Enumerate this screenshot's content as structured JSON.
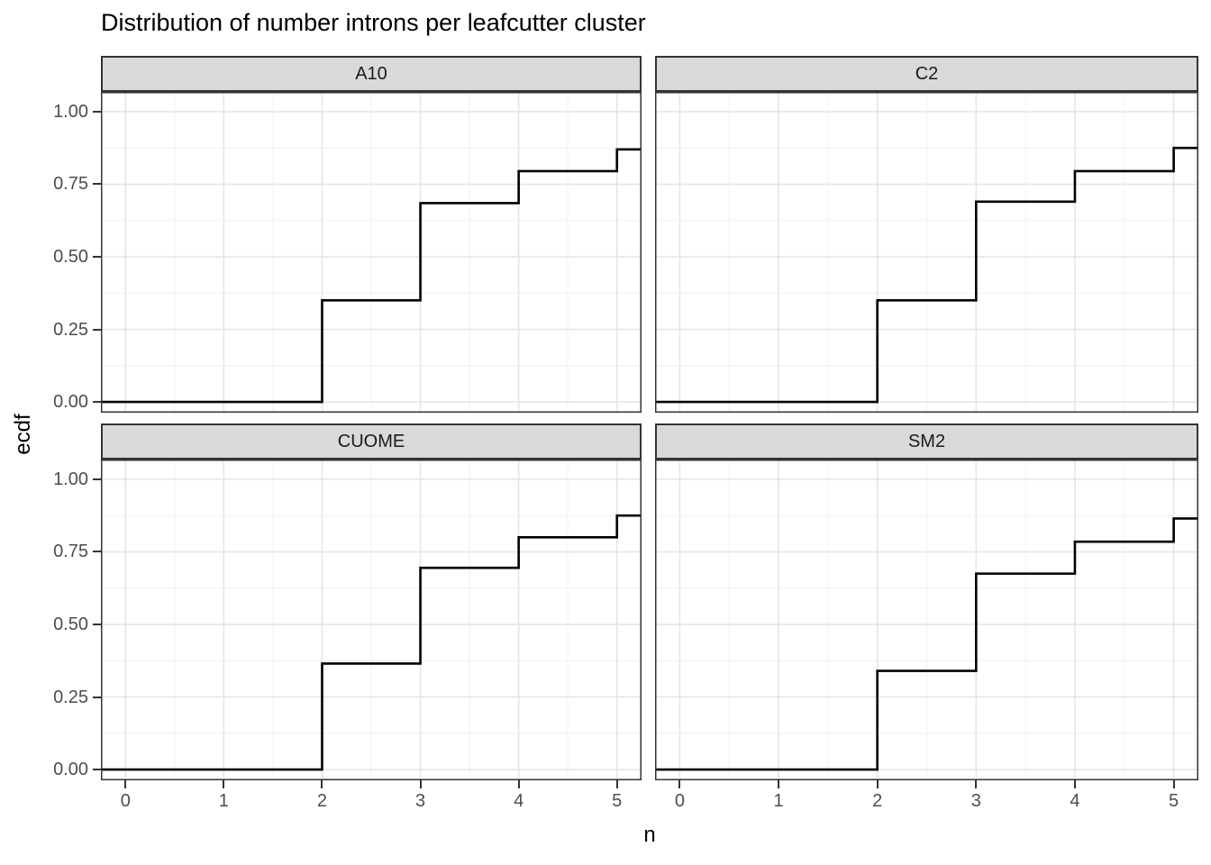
{
  "title": "Distribution of number introns per leafcutter cluster",
  "chart_data": {
    "type": "line",
    "variant": "ecdf-step-faceted",
    "title": "Distribution of number introns per leafcutter cluster",
    "xlabel": "n",
    "ylabel": "ecdf",
    "x_tick_values": [
      0,
      1,
      2,
      3,
      4,
      5
    ],
    "x_tick_labels": [
      "0",
      "1",
      "2",
      "3",
      "4",
      "5"
    ],
    "y_tick_values": [
      0.0,
      0.25,
      0.5,
      0.75,
      1.0
    ],
    "y_tick_labels": [
      "0.00",
      "0.25",
      "0.50",
      "0.75",
      "1.00"
    ],
    "xlim": [
      -0.25,
      5.25
    ],
    "ylim": [
      -0.037,
      1.068
    ],
    "grid": "major+minor",
    "grid_minor_x": [
      0.5,
      1.5,
      2.5,
      3.5,
      4.5
    ],
    "grid_minor_y": [
      0.125,
      0.375,
      0.625,
      0.875
    ],
    "legend": "none",
    "facets": [
      {
        "label": "A10",
        "baseline": 0,
        "step_x": [
          2,
          3,
          4,
          5
        ],
        "step_ecdf": [
          0.35,
          0.685,
          0.795,
          0.87
        ]
      },
      {
        "label": "C2",
        "baseline": 0,
        "step_x": [
          2,
          3,
          4,
          5
        ],
        "step_ecdf": [
          0.35,
          0.69,
          0.795,
          0.875
        ]
      },
      {
        "label": "CUOME",
        "baseline": 0,
        "step_x": [
          2,
          3,
          4,
          5
        ],
        "step_ecdf": [
          0.365,
          0.695,
          0.8,
          0.875
        ]
      },
      {
        "label": "SM2",
        "baseline": 0,
        "step_x": [
          2,
          3,
          4,
          5
        ],
        "step_ecdf": [
          0.34,
          0.675,
          0.785,
          0.865
        ]
      }
    ]
  },
  "colors": {
    "step_line": "#000000",
    "strip_fill": "#d9d9d9",
    "panel_border": "#333333",
    "grid_major": "#e4e4e4",
    "grid_minor": "#f2f2f2",
    "tick_label": "#4d4d4d",
    "strip_text": "#1a1a1a",
    "background": "#ffffff"
  }
}
